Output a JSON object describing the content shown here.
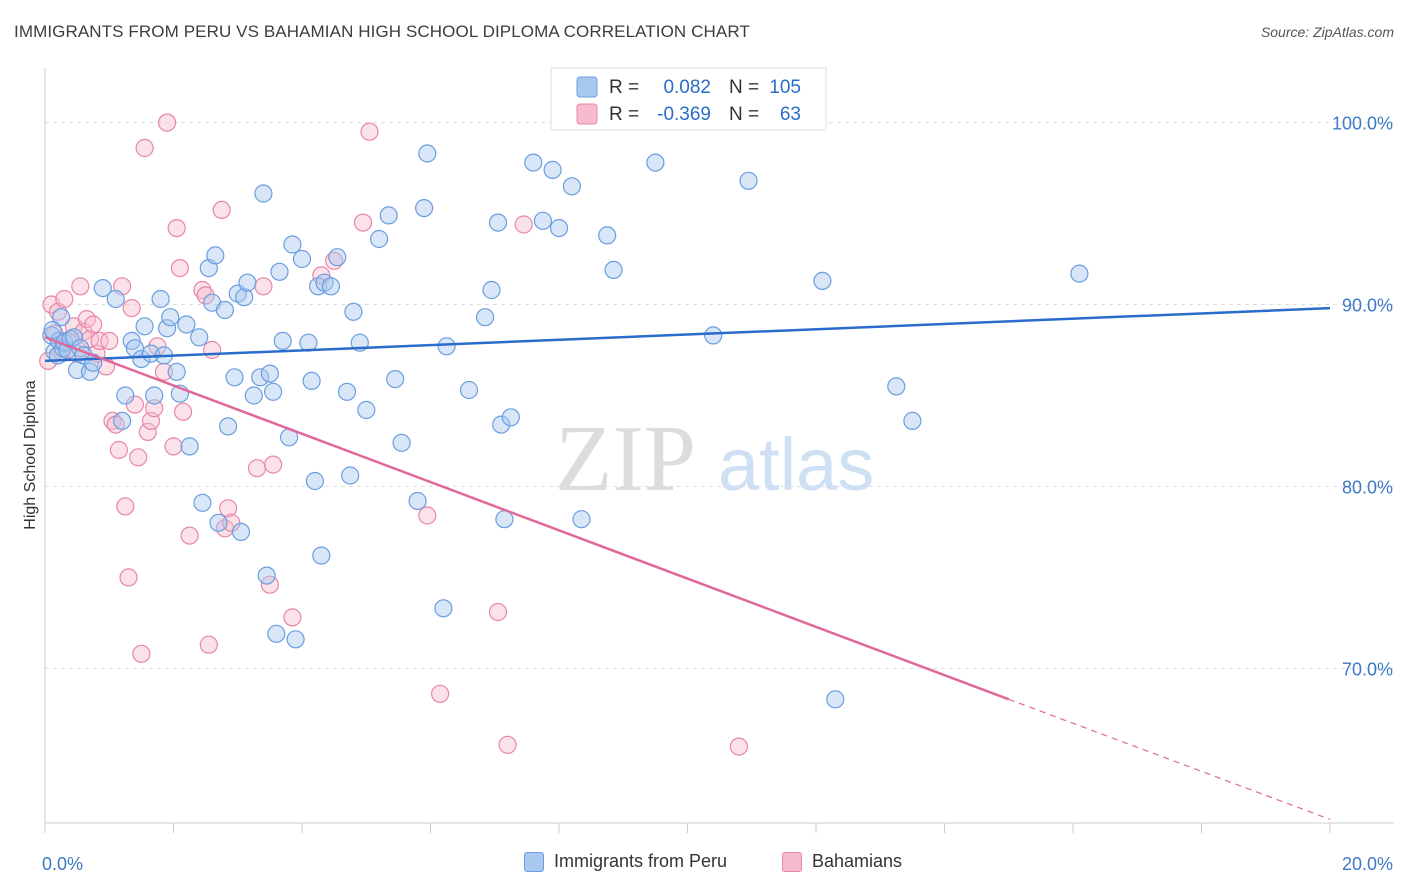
{
  "title": "IMMIGRANTS FROM PERU VS BAHAMIAN HIGH SCHOOL DIPLOMA CORRELATION CHART",
  "source": "Source: ZipAtlas.com",
  "watermark": {
    "zip": "ZIP",
    "atlas": "atlas"
  },
  "colors": {
    "blue_fill": "#a9c8f0",
    "blue_stroke": "#6a9ee0",
    "blue_line": "#2a6ccb",
    "pink_fill": "#f6bccd",
    "pink_stroke": "#e887a7",
    "pink_line": "#e0689a",
    "tick_text": "#3d79c9",
    "grid": "#dddddd"
  },
  "legend": {
    "rows": [
      {
        "r_label": "R =",
        "r_value": "0.082",
        "n_label": "N =",
        "n_value": "105"
      },
      {
        "r_label": "R =",
        "r_value": "-0.369",
        "n_label": "N =",
        "n_value": "63"
      }
    ]
  },
  "bottom_legend": {
    "series1": "Immigrants from Peru",
    "series2": "Bahamians"
  },
  "chart_data": {
    "type": "scatter",
    "xlabel": "",
    "ylabel": "High School Diploma",
    "xlim": [
      0,
      20
    ],
    "ylim": [
      61.5,
      103
    ],
    "x_tick_labels": [
      "0.0%",
      "20.0%"
    ],
    "y_ticks": [
      70,
      80,
      90,
      100
    ],
    "y_tick_labels": [
      "70.0%",
      "80.0%",
      "90.0%",
      "100.0%"
    ],
    "grid": true,
    "series": [
      {
        "name": "Immigrants from Peru",
        "r": 0.082,
        "n": 105,
        "trend": {
          "x0": 0.0,
          "y0": 86.9,
          "x1": 20.0,
          "y1": 89.8
        },
        "points": [
          [
            0.1,
            88.3
          ],
          [
            0.15,
            87.4
          ],
          [
            0.2,
            87.2
          ],
          [
            0.22,
            88.0
          ],
          [
            0.25,
            89.3
          ],
          [
            0.28,
            87.6
          ],
          [
            0.3,
            87.9
          ],
          [
            0.35,
            87.5
          ],
          [
            0.4,
            88.1
          ],
          [
            0.45,
            88.2
          ],
          [
            0.5,
            86.4
          ],
          [
            0.55,
            87.6
          ],
          [
            0.6,
            87.2
          ],
          [
            0.7,
            86.3
          ],
          [
            0.75,
            86.8
          ],
          [
            0.9,
            90.9
          ],
          [
            1.1,
            90.3
          ],
          [
            1.2,
            83.6
          ],
          [
            1.25,
            85.0
          ],
          [
            1.35,
            88.0
          ],
          [
            1.4,
            87.6
          ],
          [
            1.5,
            87.0
          ],
          [
            1.55,
            88.8
          ],
          [
            1.65,
            87.3
          ],
          [
            1.7,
            85.0
          ],
          [
            1.8,
            90.3
          ],
          [
            1.85,
            87.2
          ],
          [
            1.9,
            88.7
          ],
          [
            1.95,
            89.3
          ],
          [
            2.05,
            86.3
          ],
          [
            2.1,
            85.1
          ],
          [
            2.2,
            88.9
          ],
          [
            2.25,
            82.2
          ],
          [
            2.4,
            88.2
          ],
          [
            2.45,
            79.1
          ],
          [
            2.55,
            92.0
          ],
          [
            2.6,
            90.1
          ],
          [
            2.65,
            92.7
          ],
          [
            2.7,
            78.0
          ],
          [
            2.8,
            89.7
          ],
          [
            2.85,
            83.3
          ],
          [
            2.95,
            86.0
          ],
          [
            3.0,
            90.6
          ],
          [
            3.05,
            77.5
          ],
          [
            3.1,
            90.4
          ],
          [
            3.15,
            91.2
          ],
          [
            3.25,
            85.0
          ],
          [
            3.35,
            86.0
          ],
          [
            3.4,
            96.1
          ],
          [
            3.45,
            75.1
          ],
          [
            3.5,
            86.2
          ],
          [
            3.55,
            85.2
          ],
          [
            3.6,
            71.9
          ],
          [
            3.65,
            91.8
          ],
          [
            3.7,
            88.0
          ],
          [
            3.8,
            82.7
          ],
          [
            3.85,
            93.3
          ],
          [
            3.9,
            71.6
          ],
          [
            4.0,
            92.5
          ],
          [
            4.1,
            87.9
          ],
          [
            4.15,
            85.8
          ],
          [
            4.2,
            80.3
          ],
          [
            4.25,
            91.0
          ],
          [
            4.3,
            76.2
          ],
          [
            4.35,
            91.2
          ],
          [
            4.45,
            91.0
          ],
          [
            4.55,
            92.6
          ],
          [
            4.7,
            85.2
          ],
          [
            4.75,
            80.6
          ],
          [
            4.8,
            89.6
          ],
          [
            4.9,
            87.9
          ],
          [
            5.0,
            84.2
          ],
          [
            5.2,
            93.6
          ],
          [
            5.35,
            94.9
          ],
          [
            5.45,
            85.9
          ],
          [
            5.55,
            82.4
          ],
          [
            5.8,
            79.2
          ],
          [
            5.9,
            95.3
          ],
          [
            5.95,
            98.3
          ],
          [
            6.2,
            73.3
          ],
          [
            6.25,
            87.7
          ],
          [
            6.6,
            85.3
          ],
          [
            6.85,
            89.3
          ],
          [
            6.95,
            90.8
          ],
          [
            7.05,
            94.5
          ],
          [
            7.1,
            83.4
          ],
          [
            7.15,
            78.2
          ],
          [
            7.25,
            83.8
          ],
          [
            7.6,
            97.8
          ],
          [
            7.75,
            94.6
          ],
          [
            7.9,
            97.4
          ],
          [
            8.0,
            94.2
          ],
          [
            8.2,
            96.5
          ],
          [
            8.35,
            78.2
          ],
          [
            8.75,
            93.8
          ],
          [
            8.85,
            91.9
          ],
          [
            9.5,
            97.8
          ],
          [
            10.4,
            88.3
          ],
          [
            10.95,
            96.8
          ],
          [
            12.1,
            91.3
          ],
          [
            12.3,
            68.3
          ],
          [
            13.25,
            85.5
          ],
          [
            13.5,
            83.6
          ],
          [
            16.1,
            91.7
          ],
          [
            0.12,
            88.6
          ]
        ]
      },
      {
        "name": "Bahamians",
        "r": -0.369,
        "n": 63,
        "trend": {
          "x0": 0.0,
          "y0": 88.2,
          "x1": 15.0,
          "y1": 68.3
        },
        "trend_dashed": {
          "x0": 15.0,
          "y0": 68.3,
          "x1": 20.0,
          "y1": 61.7
        },
        "points": [
          [
            0.05,
            86.9
          ],
          [
            0.1,
            90.0
          ],
          [
            0.15,
            88.4
          ],
          [
            0.2,
            89.6
          ],
          [
            0.25,
            87.4
          ],
          [
            0.3,
            90.3
          ],
          [
            0.35,
            88.0
          ],
          [
            0.45,
            88.8
          ],
          [
            0.5,
            87.3
          ],
          [
            0.55,
            91.0
          ],
          [
            0.6,
            88.5
          ],
          [
            0.65,
            89.2
          ],
          [
            0.7,
            88.1
          ],
          [
            0.75,
            88.9
          ],
          [
            0.8,
            87.3
          ],
          [
            0.85,
            88.0
          ],
          [
            0.95,
            86.6
          ],
          [
            1.0,
            88.0
          ],
          [
            1.05,
            83.6
          ],
          [
            1.1,
            83.4
          ],
          [
            1.15,
            82.0
          ],
          [
            1.2,
            91.0
          ],
          [
            1.25,
            78.9
          ],
          [
            1.3,
            75.0
          ],
          [
            1.35,
            89.8
          ],
          [
            1.4,
            84.5
          ],
          [
            1.45,
            81.6
          ],
          [
            1.5,
            70.8
          ],
          [
            1.55,
            98.6
          ],
          [
            1.6,
            83.0
          ],
          [
            1.65,
            83.6
          ],
          [
            1.7,
            84.3
          ],
          [
            1.75,
            87.7
          ],
          [
            1.85,
            86.3
          ],
          [
            1.9,
            100.0
          ],
          [
            2.0,
            82.2
          ],
          [
            2.05,
            94.2
          ],
          [
            2.1,
            92.0
          ],
          [
            2.15,
            84.1
          ],
          [
            2.25,
            77.3
          ],
          [
            2.45,
            90.8
          ],
          [
            2.5,
            90.5
          ],
          [
            2.55,
            71.3
          ],
          [
            2.6,
            87.5
          ],
          [
            2.75,
            95.2
          ],
          [
            2.8,
            77.7
          ],
          [
            2.85,
            78.8
          ],
          [
            2.9,
            78.0
          ],
          [
            3.3,
            81.0
          ],
          [
            3.4,
            91.0
          ],
          [
            3.5,
            74.6
          ],
          [
            3.55,
            81.2
          ],
          [
            3.85,
            72.8
          ],
          [
            4.3,
            91.6
          ],
          [
            4.5,
            92.4
          ],
          [
            4.95,
            94.5
          ],
          [
            5.05,
            99.5
          ],
          [
            5.95,
            78.4
          ],
          [
            6.15,
            68.6
          ],
          [
            7.05,
            73.1
          ],
          [
            7.2,
            65.8
          ],
          [
            7.45,
            94.4
          ],
          [
            10.8,
            65.7
          ]
        ]
      }
    ]
  }
}
